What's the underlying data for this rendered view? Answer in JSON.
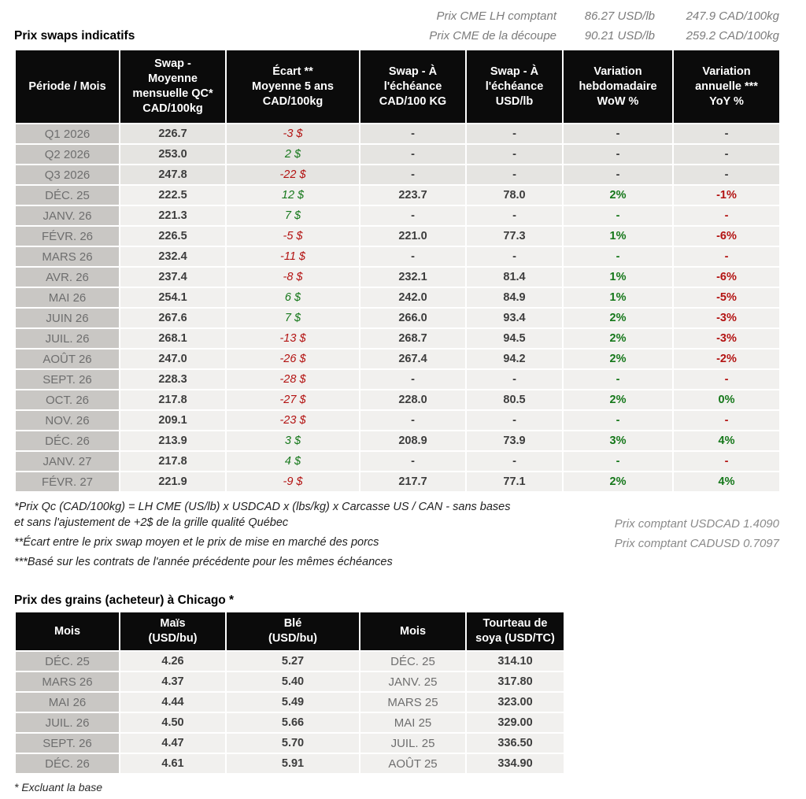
{
  "top_quotes": {
    "rows": [
      {
        "label": "Prix CME LH comptant",
        "usd": "86.27 USD/lb",
        "cad": "247.9 CAD/100kg"
      },
      {
        "label": "Prix CME de la découpe",
        "usd": "90.21 USD/lb",
        "cad": "259.2 CAD/100kg"
      }
    ]
  },
  "swaps_table": {
    "title": "Prix swaps indicatifs",
    "headers": [
      "Période / Mois",
      "Swap -\nMoyenne\nmensuelle QC*\nCAD/100kg",
      "Écart **\nMoyenne 5 ans\nCAD/100kg",
      "Swap - À\nl'échéance\nCAD/100 KG",
      "Swap - À\nl'échéance\nUSD/lb",
      "Variation\nhebdomadaire\nWoW %",
      "Variation\nannuelle ***\nYoY %"
    ],
    "rows": [
      {
        "period": "Q1 2026",
        "avg": "226.7",
        "ecart": "-3 $",
        "ecartC": "neg",
        "cad": "-",
        "usd": "-",
        "wow": "-",
        "wowC": "",
        "yoy": "-",
        "yoyC": "",
        "q": true
      },
      {
        "period": "Q2 2026",
        "avg": "253.0",
        "ecart": "2 $",
        "ecartC": "pos",
        "cad": "-",
        "usd": "-",
        "wow": "-",
        "wowC": "",
        "yoy": "-",
        "yoyC": "",
        "q": true
      },
      {
        "period": "Q3 2026",
        "avg": "247.8",
        "ecart": "-22 $",
        "ecartC": "neg",
        "cad": "-",
        "usd": "-",
        "wow": "-",
        "wowC": "",
        "yoy": "-",
        "yoyC": "",
        "q": true
      },
      {
        "period": "DÉC. 25",
        "avg": "222.5",
        "ecart": "12 $",
        "ecartC": "pos",
        "cad": "223.7",
        "usd": "78.0",
        "wow": "2%",
        "wowC": "pos",
        "yoy": "-1%",
        "yoyC": "neg",
        "q": false
      },
      {
        "period": "JANV. 26",
        "avg": "221.3",
        "ecart": "7 $",
        "ecartC": "pos",
        "cad": "-",
        "usd": "-",
        "wow": "-",
        "wowC": "pos",
        "yoy": "-",
        "yoyC": "neg",
        "q": false
      },
      {
        "period": "FÉVR. 26",
        "avg": "226.5",
        "ecart": "-5 $",
        "ecartC": "neg",
        "cad": "221.0",
        "usd": "77.3",
        "wow": "1%",
        "wowC": "pos",
        "yoy": "-6%",
        "yoyC": "neg",
        "q": false
      },
      {
        "period": "MARS 26",
        "avg": "232.4",
        "ecart": "-11 $",
        "ecartC": "neg",
        "cad": "-",
        "usd": "-",
        "wow": "-",
        "wowC": "pos",
        "yoy": "-",
        "yoyC": "neg",
        "q": false
      },
      {
        "period": "AVR. 26",
        "avg": "237.4",
        "ecart": "-8 $",
        "ecartC": "neg",
        "cad": "232.1",
        "usd": "81.4",
        "wow": "1%",
        "wowC": "pos",
        "yoy": "-6%",
        "yoyC": "neg",
        "q": false
      },
      {
        "period": "MAI 26",
        "avg": "254.1",
        "ecart": "6 $",
        "ecartC": "pos",
        "cad": "242.0",
        "usd": "84.9",
        "wow": "1%",
        "wowC": "pos",
        "yoy": "-5%",
        "yoyC": "neg",
        "q": false
      },
      {
        "period": "JUIN 26",
        "avg": "267.6",
        "ecart": "7 $",
        "ecartC": "pos",
        "cad": "266.0",
        "usd": "93.4",
        "wow": "2%",
        "wowC": "pos",
        "yoy": "-3%",
        "yoyC": "neg",
        "q": false
      },
      {
        "period": "JUIL. 26",
        "avg": "268.1",
        "ecart": "-13 $",
        "ecartC": "neg",
        "cad": "268.7",
        "usd": "94.5",
        "wow": "2%",
        "wowC": "pos",
        "yoy": "-3%",
        "yoyC": "neg",
        "q": false
      },
      {
        "period": "AOÛT 26",
        "avg": "247.0",
        "ecart": "-26 $",
        "ecartC": "neg",
        "cad": "267.4",
        "usd": "94.2",
        "wow": "2%",
        "wowC": "pos",
        "yoy": "-2%",
        "yoyC": "neg",
        "q": false
      },
      {
        "period": "SEPT. 26",
        "avg": "228.3",
        "ecart": "-28 $",
        "ecartC": "neg",
        "cad": "-",
        "usd": "-",
        "wow": "-",
        "wowC": "pos",
        "yoy": "-",
        "yoyC": "neg",
        "q": false
      },
      {
        "period": "OCT. 26",
        "avg": "217.8",
        "ecart": "-27 $",
        "ecartC": "neg",
        "cad": "228.0",
        "usd": "80.5",
        "wow": "2%",
        "wowC": "pos",
        "yoy": "0%",
        "yoyC": "pos",
        "q": false
      },
      {
        "period": "NOV. 26",
        "avg": "209.1",
        "ecart": "-23 $",
        "ecartC": "neg",
        "cad": "-",
        "usd": "-",
        "wow": "-",
        "wowC": "pos",
        "yoy": "-",
        "yoyC": "neg",
        "q": false
      },
      {
        "period": "DÉC. 26",
        "avg": "213.9",
        "ecart": "3 $",
        "ecartC": "pos",
        "cad": "208.9",
        "usd": "73.9",
        "wow": "3%",
        "wowC": "pos",
        "yoy": "4%",
        "yoyC": "pos",
        "q": false
      },
      {
        "period": "JANV. 27",
        "avg": "217.8",
        "ecart": "4 $",
        "ecartC": "pos",
        "cad": "-",
        "usd": "-",
        "wow": "-",
        "wowC": "pos",
        "yoy": "-",
        "yoyC": "neg",
        "q": false
      },
      {
        "period": "FÉVR. 27",
        "avg": "221.9",
        "ecart": "-9 $",
        "ecartC": "neg",
        "cad": "217.7",
        "usd": "77.1",
        "wow": "2%",
        "wowC": "pos",
        "yoy": "4%",
        "yoyC": "pos",
        "q": false
      }
    ]
  },
  "footnotes": {
    "fn1": "*Prix Qc (CAD/100kg) = LH CME (US/lb) x USDCAD x (lbs/kg) x Carcasse US / CAN - sans bases\net sans l'ajustement de +2$ de la grille qualité Québec",
    "fn2": "**Écart entre le prix swap moyen et le prix de mise en marché des porcs",
    "fn3": "***Basé sur les contrats de l'année précédente pour les mêmes échéances"
  },
  "spot_rates": {
    "usdcad": "Prix comptant USDCAD 1.4090",
    "cadusd": "Prix comptant CADUSD 0.7097"
  },
  "grains_table": {
    "title": "Prix des grains (acheteur) à Chicago *",
    "headers": [
      "Mois",
      "Maïs\n(USD/bu)",
      "Blé\n(USD/bu)",
      "Mois",
      "Tourteau de\nsoya (USD/TC)"
    ],
    "rows": [
      {
        "mois1": "DÉC. 25",
        "mais": "4.26",
        "ble": "5.27",
        "mois2": "DÉC. 25",
        "tourteau": "314.10"
      },
      {
        "mois1": "MARS 26",
        "mais": "4.37",
        "ble": "5.40",
        "mois2": "JANV. 25",
        "tourteau": "317.80"
      },
      {
        "mois1": "MAI 26",
        "mais": "4.44",
        "ble": "5.49",
        "mois2": "MARS 25",
        "tourteau": "323.00"
      },
      {
        "mois1": "JUIL. 26",
        "mais": "4.50",
        "ble": "5.66",
        "mois2": "MAI 25",
        "tourteau": "329.00"
      },
      {
        "mois1": "SEPT. 26",
        "mais": "4.47",
        "ble": "5.70",
        "mois2": "JUIL. 25",
        "tourteau": "336.50"
      },
      {
        "mois1": "DÉC. 26",
        "mais": "4.61",
        "ble": "5.91",
        "mois2": "AOÛT 25",
        "tourteau": "334.90"
      }
    ],
    "base_note": "* Excluant la base"
  }
}
